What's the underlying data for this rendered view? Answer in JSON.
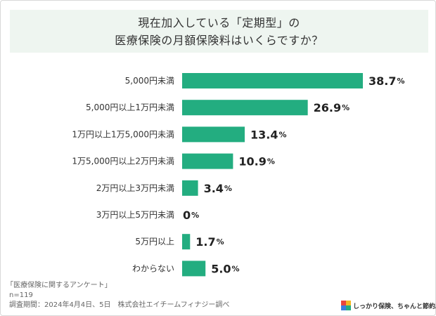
{
  "title": {
    "line1": "現在加入している「定期型」の",
    "line2": "医療保険の月額保険料はいくらですか？"
  },
  "chart_data": {
    "type": "bar",
    "orientation": "horizontal",
    "categories": [
      "5,000円未満",
      "5,000円以上1万円未満",
      "1万円以上1万5,000円未満",
      "1万5,000円以上2万円未満",
      "2万円以上3万円未満",
      "3万円以上5万円未満",
      "5万円以上",
      "わからない"
    ],
    "values": [
      38.7,
      26.9,
      13.4,
      10.9,
      3.4,
      0,
      1.7,
      5.0
    ],
    "value_labels": [
      "38.7",
      "26.9",
      "13.4",
      "10.9",
      "3.4",
      "0",
      "1.7",
      "5.0"
    ],
    "unit": "%",
    "xlim": [
      0,
      38.7
    ],
    "color": "#23ad80",
    "grid": false,
    "legend": "none"
  },
  "footer": {
    "source": "「医療保険に関するアンケート」",
    "n": "n=119",
    "period": "調査期間：2024年4月4日、5日　株式会社エイチームフィナジー調べ"
  },
  "logo": {
    "text": "しっかり保険、ちゃんと節約。",
    "colors": [
      "#e8453c",
      "#f2b824",
      "#3b7ddd",
      "#23ad80"
    ]
  }
}
